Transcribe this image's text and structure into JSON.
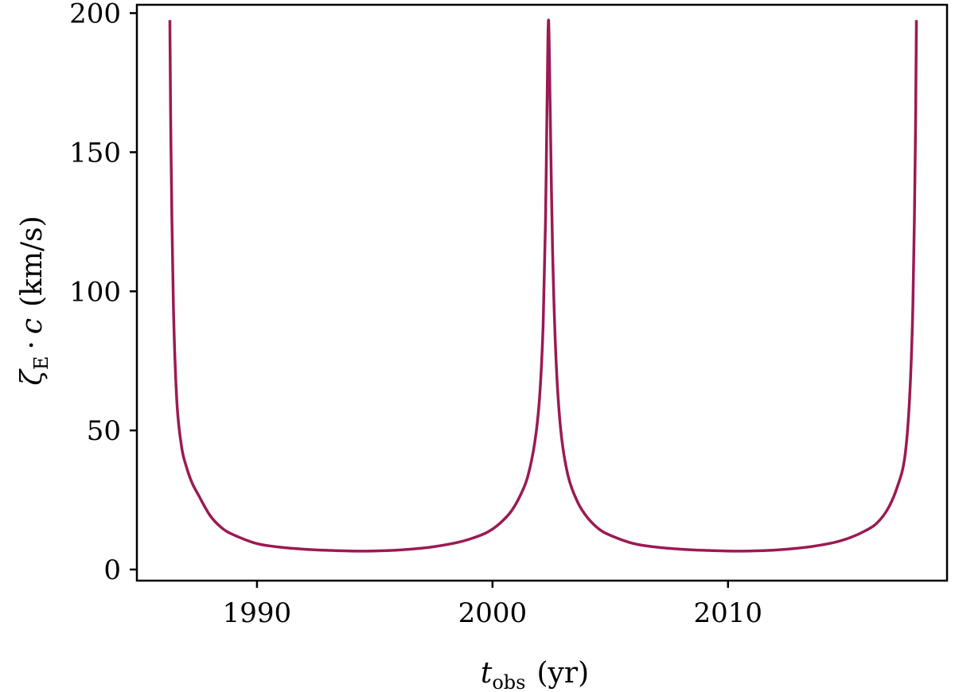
{
  "chart_data": {
    "type": "line",
    "xlabel": {
      "symbol": "t",
      "subscript": "obs",
      "unit": "(yr)"
    },
    "ylabel": {
      "symbol": "ζ",
      "subscript": "E",
      "operator": "·",
      "symbol2": "c",
      "unit": "(km/s)"
    },
    "xlim": [
      1984.9,
      2019.3
    ],
    "ylim": [
      -4,
      203
    ],
    "xticks": [
      1990,
      2000,
      2010
    ],
    "yticks": [
      0,
      50,
      100,
      150,
      200
    ],
    "xtick_labels": [
      "1990",
      "2000",
      "2010"
    ],
    "ytick_labels": [
      "0",
      "50",
      "100",
      "150",
      "200"
    ],
    "grid": false,
    "series": [
      {
        "color": "#9b1a52",
        "x": [
          1986.3,
          1986.35,
          1986.45,
          1986.6,
          1986.8,
          1987.0,
          1987.25,
          1987.5,
          1988.0,
          1988.5,
          1989.0,
          1990.0,
          1991.0,
          1992.0,
          1993.0,
          1994.3,
          1995.5,
          1996.5,
          1997.5,
          1998.5,
          1999.2,
          1999.8,
          2000.3,
          2000.8,
          2001.2,
          2001.5,
          2001.8,
          2002.0,
          2002.15,
          2002.25,
          2002.32,
          2002.38,
          2002.45,
          2002.55,
          2002.7,
          2002.9,
          2003.2,
          2003.6,
          2004.0,
          2004.5,
          2005.0,
          2006.0,
          2007.0,
          2008.0,
          2009.0,
          2010.3,
          2011.5,
          2012.5,
          2013.5,
          2014.5,
          2015.2,
          2015.8,
          2016.3,
          2016.8,
          2017.2,
          2017.5,
          2017.7,
          2017.85,
          2017.95,
          2018.0
        ],
        "y": [
          197.5,
          150,
          95,
          60,
          44,
          37,
          31,
          27,
          19.5,
          15,
          12.5,
          9.3,
          8.0,
          7.3,
          6.9,
          6.6,
          6.8,
          7.3,
          8.2,
          9.7,
          11.4,
          13.5,
          16.5,
          21.0,
          27.0,
          33.5,
          46.0,
          62.0,
          88.0,
          125.0,
          170.0,
          197.5,
          165.0,
          115.0,
          75.0,
          50.0,
          34.0,
          24.5,
          19.0,
          14.7,
          12.3,
          9.3,
          8.0,
          7.3,
          6.9,
          6.6,
          6.8,
          7.3,
          8.2,
          9.7,
          11.5,
          13.8,
          16.5,
          22.0,
          30.0,
          40.0,
          60.0,
          95.0,
          150.0,
          197.5
        ]
      }
    ]
  }
}
